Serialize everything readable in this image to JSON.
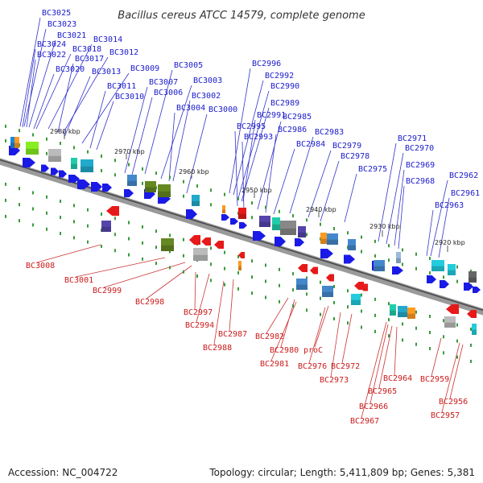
{
  "title": "Bacillus cereus ATCC 14579, complete genome",
  "footer": {
    "accession": "Accession: NC_004722",
    "topology": "Topology: circular; Length: 5,411,809 bp; Genes: 5,381"
  },
  "ticks": [
    "2980 kbp",
    "2970 kbp",
    "2960 kbp",
    "2950 kbp",
    "2940 kbp",
    "2930 kbp",
    "2920 kbp"
  ],
  "top_labels": [
    "BC3025",
    "BC3023",
    "BC3021",
    "BC3024",
    "BC3018",
    "BC3014",
    "BC3022",
    "BC3017",
    "BC3012",
    "BC3020",
    "BC3013",
    "BC3009",
    "BC3011",
    "BC3010",
    "BC3007",
    "BC3006",
    "BC3005",
    "BC3003",
    "BC3002",
    "BC3004",
    "BC3000",
    "BC2996",
    "BC2992",
    "BC2990",
    "BC2989",
    "BC2991",
    "BC2985",
    "BC2995",
    "BC2986",
    "BC2993",
    "BC2983",
    "BC2984",
    "BC2979",
    "BC2978",
    "BC2975",
    "BC2971",
    "BC2970",
    "BC2969",
    "BC2968",
    "BC2962",
    "BC2961",
    "BC2963"
  ],
  "bottom_labels": [
    "BC3008",
    "BC3001",
    "BC2999",
    "BC2998",
    "BC2997",
    "BC2994",
    "BC2987",
    "BC2988",
    "BC2982",
    "BC2980",
    "BC2981",
    "proC",
    "BC2976",
    "BC2973",
    "BC2972",
    "BC2964",
    "BC2965",
    "BC2966",
    "BC2967",
    "BC2959",
    "BC2956",
    "BC2957"
  ]
}
